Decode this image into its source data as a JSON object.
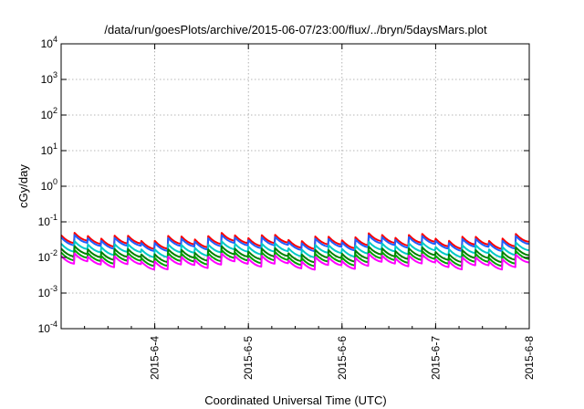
{
  "chart_data": {
    "type": "line",
    "title": "/data/run/goesPlots/archive/2015-06-07/23:00/flux/../bryn/5daysMars.plot",
    "xlabel": "Coordinated Universal Time (UTC)",
    "ylabel": "cGy/day",
    "y_scale": "log",
    "ylim": [
      "1e-4",
      "1e4"
    ],
    "y_ticks": [
      {
        "base": "10",
        "exp": "4",
        "value": 10000
      },
      {
        "base": "10",
        "exp": "3",
        "value": 1000
      },
      {
        "base": "10",
        "exp": "2",
        "value": 100
      },
      {
        "base": "10",
        "exp": "1",
        "value": 10
      },
      {
        "base": "10",
        "exp": "0",
        "value": 1
      },
      {
        "base": "10",
        "exp": "-1",
        "value": 0.1
      },
      {
        "base": "10",
        "exp": "-2",
        "value": 0.01
      },
      {
        "base": "10",
        "exp": "-3",
        "value": 0.001
      },
      {
        "base": "10",
        "exp": "-4",
        "value": 0.0001
      }
    ],
    "xlim": [
      "2015-06-03 00:00",
      "2015-06-08 00:00"
    ],
    "x_ticks": [
      "2015-6-4",
      "2015-6-5",
      "2015-6-6",
      "2015-6-7",
      "2015-6-8"
    ],
    "grid": true,
    "x_days_start": "2015-06-03",
    "pulses_per_day": 7,
    "pulse_decay_ratio": 0.6,
    "series": [
      {
        "color": "#ff0000",
        "typical_peak": 0.038
      },
      {
        "color": "#2060ff",
        "typical_peak": 0.033
      },
      {
        "color": "#00c8c8",
        "typical_peak": 0.022
      },
      {
        "color": "#008000",
        "typical_peak": 0.016
      },
      {
        "color": "#00a000",
        "typical_peak": 0.0125
      },
      {
        "color": "#ff00ff",
        "typical_peak": 0.01
      }
    ]
  }
}
